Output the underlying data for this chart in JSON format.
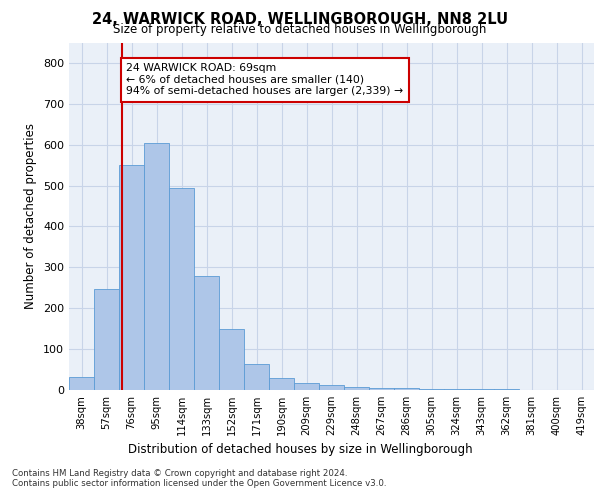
{
  "title_line1": "24, WARWICK ROAD, WELLINGBOROUGH, NN8 2LU",
  "title_line2": "Size of property relative to detached houses in Wellingborough",
  "xlabel": "Distribution of detached houses by size in Wellingborough",
  "ylabel": "Number of detached properties",
  "categories": [
    "38sqm",
    "57sqm",
    "76sqm",
    "95sqm",
    "114sqm",
    "133sqm",
    "152sqm",
    "171sqm",
    "190sqm",
    "209sqm",
    "229sqm",
    "248sqm",
    "267sqm",
    "286sqm",
    "305sqm",
    "324sqm",
    "343sqm",
    "362sqm",
    "381sqm",
    "400sqm",
    "419sqm"
  ],
  "bar_heights": [
    32,
    248,
    550,
    605,
    493,
    278,
    148,
    63,
    30,
    18,
    12,
    7,
    5,
    4,
    3,
    3,
    2,
    2,
    1,
    1,
    1
  ],
  "bar_color": "#aec6e8",
  "bar_edge_color": "#5b9bd5",
  "annotation_box_text": "24 WARWICK ROAD: 69sqm\n← 6% of detached houses are smaller (140)\n94% of semi-detached houses are larger (2,339) →",
  "red_line_color": "#cc0000",
  "annotation_box_color": "#ffffff",
  "annotation_box_edge_color": "#cc0000",
  "grid_color": "#c8d4e8",
  "background_color": "#eaf0f8",
  "footer_line1": "Contains HM Land Registry data © Crown copyright and database right 2024.",
  "footer_line2": "Contains public sector information licensed under the Open Government Licence v3.0.",
  "ylim": [
    0,
    850
  ],
  "yticks": [
    0,
    100,
    200,
    300,
    400,
    500,
    600,
    700,
    800
  ]
}
